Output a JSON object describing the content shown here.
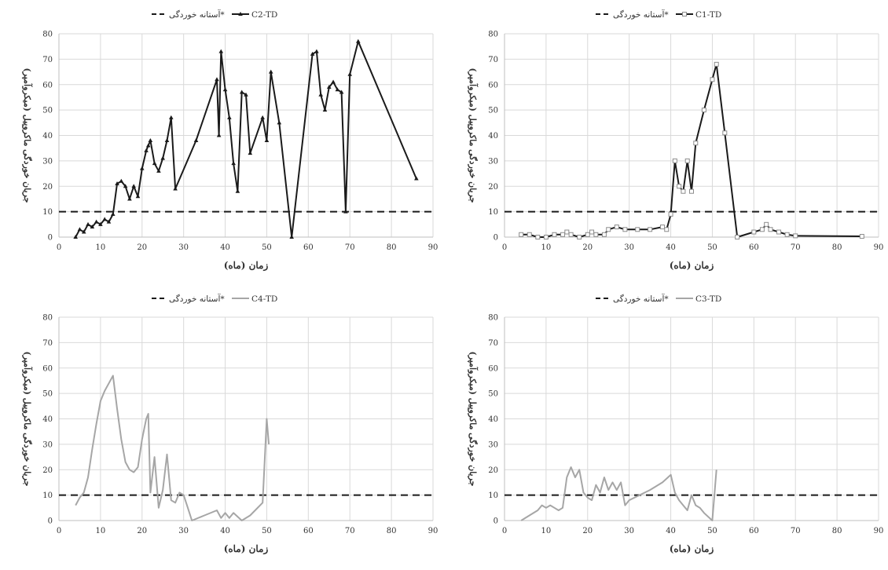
{
  "colors": {
    "grid": "#d9d9d9",
    "axis": "#bfbfbf",
    "threshold": "#1a1a1a",
    "C1-TD": "#1a1a1a",
    "C2-TD": "#1a1a1a",
    "C3-TD": "#a6a6a6",
    "C4-TD": "#a6a6a6"
  },
  "chart_data": [
    {
      "panel": "top-left",
      "type": "line",
      "legend_position": "top",
      "xlabel": "زمان (ماه)",
      "ylabel": "جریان خوردگی ماکروپیل (میکروآمپر)",
      "xlim": [
        0,
        90
      ],
      "ylim": [
        0,
        80
      ],
      "xticks": [
        "0",
        "10",
        "20",
        "30",
        "40",
        "50",
        "60",
        "70",
        "80",
        "90"
      ],
      "yticks": [
        "0",
        "10",
        "20",
        "30",
        "40",
        "50",
        "60",
        "70",
        "80"
      ],
      "threshold": {
        "name": "آستانه خوردگی*",
        "y": 10
      },
      "series": [
        {
          "name": "C2-TD",
          "marker": "triangle",
          "color_key": "C2-TD",
          "x": [
            4,
            5,
            6,
            7,
            8,
            9,
            10,
            11,
            12,
            13,
            14,
            15,
            16,
            17,
            18,
            19,
            20,
            21,
            21.5,
            22,
            23,
            24,
            25,
            26,
            27,
            28,
            33,
            38,
            38.5,
            39,
            40,
            41,
            42,
            43,
            44,
            45,
            46,
            49,
            50,
            51,
            53,
            56,
            61,
            62,
            63,
            64,
            65,
            66,
            67,
            68,
            69,
            70,
            72,
            86
          ],
          "y": [
            0,
            3,
            2,
            5,
            4,
            6,
            5,
            7,
            6,
            9,
            21,
            22,
            20,
            15,
            20,
            16,
            27,
            34,
            36,
            38,
            29,
            26,
            31,
            38,
            47,
            19,
            38,
            62,
            40,
            73,
            58,
            47,
            29,
            18,
            57,
            56,
            33,
            47,
            38,
            65,
            45,
            0,
            72,
            73,
            56,
            50,
            59,
            61,
            58,
            57,
            10,
            64,
            77,
            23
          ]
        }
      ]
    },
    {
      "panel": "top-right",
      "type": "line",
      "legend_position": "top",
      "xlabel": "زمان (ماه)",
      "ylabel": "جریان خوردگی ماکروپیل (میکروآمپر)",
      "xlim": [
        0,
        90
      ],
      "ylim": [
        0,
        80
      ],
      "xticks": [
        "0",
        "10",
        "20",
        "30",
        "40",
        "50",
        "60",
        "70",
        "80",
        "90"
      ],
      "yticks": [
        "0",
        "10",
        "20",
        "30",
        "40",
        "50",
        "60",
        "70",
        "80"
      ],
      "threshold": {
        "name": "آستانه خوردگی*",
        "y": 10
      },
      "series": [
        {
          "name": "C1-TD",
          "marker": "square",
          "color_key": "C1-TD",
          "x": [
            4,
            6,
            8,
            10,
            12,
            14,
            15,
            16,
            18,
            20,
            21,
            22,
            24,
            25,
            27,
            29,
            32,
            35,
            38,
            39,
            40,
            41,
            42,
            43,
            44,
            45,
            46,
            48,
            50,
            51,
            53,
            56,
            60,
            62,
            63,
            64,
            66,
            68,
            70,
            86
          ],
          "y": [
            1,
            1,
            0,
            0,
            1,
            1,
            2,
            1,
            0,
            1,
            2,
            1,
            1,
            3,
            4,
            3,
            3,
            3,
            4,
            3,
            9,
            30,
            20,
            18,
            30,
            18,
            37,
            50,
            62,
            68,
            41,
            0,
            2,
            3,
            5,
            3,
            2,
            1,
            0.5,
            0.3
          ]
        }
      ]
    },
    {
      "panel": "bottom-left",
      "type": "line",
      "legend_position": "top",
      "xlabel": "زمان (ماه)",
      "ylabel": "جریان خوردگی ماکروپیل (میکروآمپر)",
      "xlim": [
        0,
        90
      ],
      "ylim": [
        0,
        80
      ],
      "xticks": [
        "0",
        "10",
        "20",
        "30",
        "40",
        "50",
        "60",
        "70",
        "80",
        "90"
      ],
      "yticks": [
        "0",
        "10",
        "20",
        "30",
        "40",
        "50",
        "60",
        "70",
        "80"
      ],
      "threshold": {
        "name": "آستانه خوردگی*",
        "y": 10
      },
      "series": [
        {
          "name": "C4-TD",
          "marker": "none",
          "color_key": "C4-TD",
          "x": [
            4,
            5,
            6,
            7,
            8,
            9,
            10,
            11,
            12,
            13,
            14,
            15,
            16,
            17,
            18,
            19,
            20,
            21,
            21.5,
            22,
            23,
            24,
            25,
            26,
            27,
            28,
            29,
            30,
            31,
            32,
            35,
            38,
            39,
            40,
            41,
            42,
            44,
            46,
            49,
            50,
            50.5
          ],
          "y": [
            6,
            9,
            11,
            17,
            28,
            38,
            47,
            51,
            54,
            57,
            44,
            32,
            23,
            20,
            19,
            21,
            32,
            40,
            42,
            11,
            25,
            5,
            12,
            26,
            8,
            7,
            11,
            10,
            5,
            0,
            2,
            4,
            1,
            3,
            1,
            3,
            0,
            2,
            7,
            40,
            30
          ]
        }
      ]
    },
    {
      "panel": "bottom-right",
      "type": "line",
      "legend_position": "top",
      "xlabel": "زمان (ماه)",
      "ylabel": "جریان خوردگی ماکروپیل (میکروآمپر)",
      "xlim": [
        0,
        90
      ],
      "ylim": [
        0,
        80
      ],
      "xticks": [
        "0",
        "10",
        "20",
        "30",
        "40",
        "50",
        "60",
        "70",
        "80",
        "90"
      ],
      "yticks": [
        "0",
        "10",
        "20",
        "30",
        "40",
        "50",
        "60",
        "70",
        "80"
      ],
      "threshold": {
        "name": "آستانه خوردگی*",
        "y": 10
      },
      "series": [
        {
          "name": "C3-TD",
          "marker": "none",
          "color_key": "C3-TD",
          "x": [
            4,
            6,
            8,
            9,
            10,
            11,
            12,
            13,
            14,
            15,
            16,
            17,
            18,
            19,
            20,
            21,
            22,
            23,
            24,
            25,
            26,
            27,
            28,
            29,
            30,
            35,
            38,
            40,
            41,
            42,
            43,
            44,
            45,
            46,
            47,
            48,
            50,
            50.5,
            51
          ],
          "y": [
            0,
            2,
            4,
            6,
            5,
            6,
            5,
            4,
            5,
            17,
            21,
            17,
            20,
            11,
            9,
            8,
            14,
            11,
            17,
            12,
            15,
            12,
            15,
            6,
            8,
            12,
            15,
            18,
            11,
            8,
            6,
            4,
            10,
            6,
            5,
            3,
            0,
            10,
            20
          ]
        }
      ]
    }
  ]
}
